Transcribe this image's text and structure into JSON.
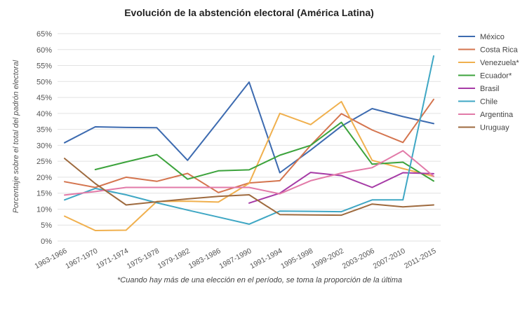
{
  "chart_data": {
    "type": "line",
    "title": "Evolución de la abstención electoral (América Latina)",
    "xlabel": "",
    "ylabel": "Porcentaje sobre el total del padrón electoral",
    "footnote": "*Cuando hay más de una elección en el período, se toma la proporción de la última",
    "ylim": [
      0,
      65
    ],
    "yticks": [
      0,
      5,
      10,
      15,
      20,
      25,
      30,
      35,
      40,
      45,
      50,
      55,
      60,
      65
    ],
    "ytick_labels": [
      "0%",
      "5%",
      "10%",
      "15%",
      "20%",
      "25%",
      "30%",
      "35%",
      "40%",
      "45%",
      "50%",
      "55%",
      "60%",
      "65%"
    ],
    "grid": true,
    "legend_position": "right",
    "categories": [
      "1963-1966",
      "1967-1970",
      "1971-1974",
      "1975-1978",
      "1979-1982",
      "1983-1986",
      "1987-1990",
      "1991-1994",
      "1995-1998",
      "1999-2002",
      "2003-2006",
      "2007-2010",
      "2011-2015"
    ],
    "series": [
      {
        "name": "México",
        "color": "#3d6bb0",
        "values": [
          30.8,
          35.8,
          35.6,
          35.5,
          25.3,
          37.5,
          49.8,
          21.4,
          28.5,
          36.0,
          41.5,
          39.0,
          36.8
        ]
      },
      {
        "name": "Costa Rica",
        "color": "#d4744e",
        "values": [
          18.6,
          16.8,
          20.0,
          18.7,
          21.2,
          15.2,
          18.2,
          18.9,
          30.0,
          39.9,
          34.8,
          30.9,
          44.4
        ]
      },
      {
        "name": "Venezuela*",
        "color": "#f0b04e",
        "values": [
          7.8,
          3.3,
          3.4,
          12.4,
          12.5,
          12.2,
          18.1,
          40.0,
          36.5,
          43.7,
          25.3,
          22.7,
          20.3
        ]
      },
      {
        "name": "Ecuador*",
        "color": "#3ca33c",
        "values": [
          null,
          22.4,
          24.8,
          27.1,
          19.4,
          22.0,
          22.3,
          26.9,
          30.0,
          37.2,
          24.1,
          24.7,
          18.8
        ]
      },
      {
        "name": "Brasil",
        "color": "#a63ba6",
        "values": [
          null,
          null,
          null,
          null,
          null,
          null,
          11.9,
          15.0,
          21.5,
          20.5,
          16.8,
          21.4,
          21.1
        ]
      },
      {
        "name": "Chile",
        "color": "#3fa7c4",
        "values": [
          12.9,
          16.5,
          14.5,
          12.0,
          9.7,
          7.5,
          5.3,
          9.4,
          9.3,
          9.2,
          12.9,
          12.9,
          58.0
        ]
      },
      {
        "name": "Argentina",
        "color": "#e27aa8",
        "values": [
          14.4,
          15.5,
          16.8,
          16.8,
          16.8,
          16.8,
          16.8,
          14.8,
          18.9,
          21.3,
          23.0,
          28.3,
          20.3
        ]
      },
      {
        "name": "Uruguay",
        "color": "#9e6a3e",
        "values": [
          25.9,
          18.0,
          11.3,
          12.3,
          13.2,
          14.0,
          14.5,
          8.3,
          8.2,
          8.1,
          11.6,
          10.7,
          11.3
        ]
      }
    ]
  }
}
